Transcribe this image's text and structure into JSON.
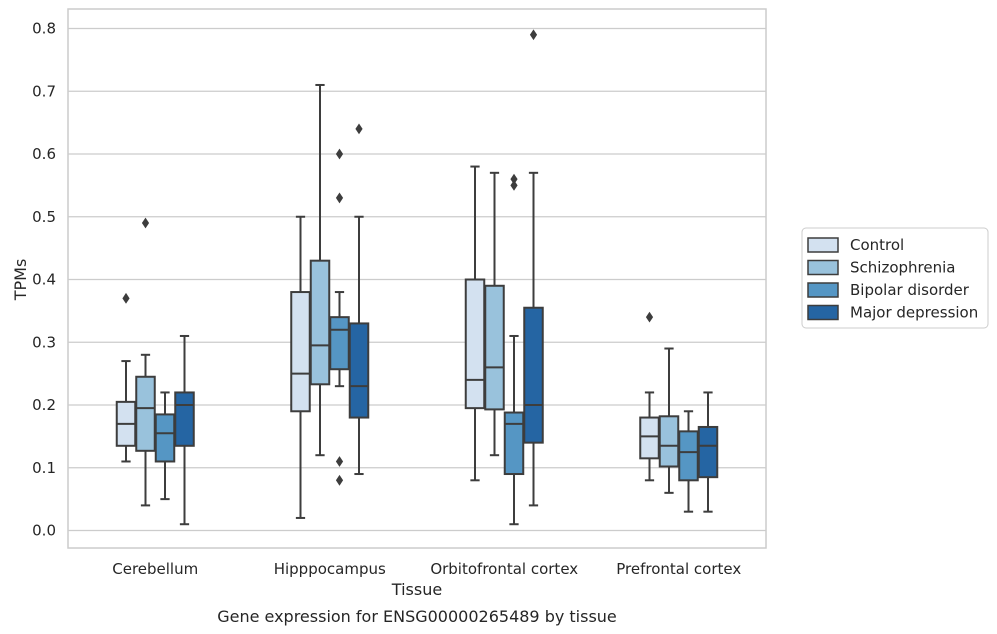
{
  "chart_data": {
    "type": "box",
    "title": "",
    "caption": "Gene expression for ENSG00000265489 by tissue",
    "xlabel": "Tissue",
    "ylabel": "TPMs",
    "ylim": [
      -0.03,
      0.83
    ],
    "yticks": [
      0.0,
      0.1,
      0.2,
      0.3,
      0.4,
      0.5,
      0.6,
      0.7,
      0.8
    ],
    "ytick_labels": [
      "0.0",
      "0.1",
      "0.2",
      "0.3",
      "0.4",
      "0.5",
      "0.6",
      "0.7",
      "0.8"
    ],
    "grid": "horizontal",
    "legend_position": "right",
    "categories": [
      "Cerebellum",
      "Hipppocampus",
      "Orbitofrontal cortex",
      "Prefrontal cortex"
    ],
    "series": [
      {
        "name": "Control",
        "color": "#d3e1f0",
        "boxes": [
          {
            "whislo": 0.11,
            "q1": 0.135,
            "med": 0.17,
            "q3": 0.205,
            "whishi": 0.27,
            "fliers": [
              0.37
            ]
          },
          {
            "whislo": 0.02,
            "q1": 0.19,
            "med": 0.25,
            "q3": 0.38,
            "whishi": 0.5,
            "fliers": []
          },
          {
            "whislo": 0.08,
            "q1": 0.195,
            "med": 0.24,
            "q3": 0.4,
            "whishi": 0.58,
            "fliers": []
          },
          {
            "whislo": 0.08,
            "q1": 0.115,
            "med": 0.15,
            "q3": 0.18,
            "whishi": 0.22,
            "fliers": [
              0.34
            ]
          }
        ]
      },
      {
        "name": "Schizophrenia",
        "color": "#99c2dc",
        "boxes": [
          {
            "whislo": 0.04,
            "q1": 0.127,
            "med": 0.195,
            "q3": 0.245,
            "whishi": 0.28,
            "fliers": [
              0.49
            ]
          },
          {
            "whislo": 0.12,
            "q1": 0.233,
            "med": 0.295,
            "q3": 0.43,
            "whishi": 0.71,
            "fliers": []
          },
          {
            "whislo": 0.12,
            "q1": 0.193,
            "med": 0.26,
            "q3": 0.39,
            "whishi": 0.57,
            "fliers": []
          },
          {
            "whislo": 0.06,
            "q1": 0.102,
            "med": 0.135,
            "q3": 0.182,
            "whishi": 0.29,
            "fliers": []
          }
        ]
      },
      {
        "name": "Bipolar disorder",
        "color": "#5596c4",
        "boxes": [
          {
            "whislo": 0.05,
            "q1": 0.11,
            "med": 0.155,
            "q3": 0.185,
            "whishi": 0.22,
            "fliers": []
          },
          {
            "whislo": 0.23,
            "q1": 0.257,
            "med": 0.32,
            "q3": 0.34,
            "whishi": 0.38,
            "fliers": [
              0.6,
              0.53,
              0.11,
              0.08
            ]
          },
          {
            "whislo": 0.01,
            "q1": 0.09,
            "med": 0.17,
            "q3": 0.188,
            "whishi": 0.31,
            "fliers": [
              0.56,
              0.55
            ]
          },
          {
            "whislo": 0.03,
            "q1": 0.08,
            "med": 0.125,
            "q3": 0.158,
            "whishi": 0.19,
            "fliers": []
          }
        ]
      },
      {
        "name": "Major depression",
        "color": "#2565a3",
        "boxes": [
          {
            "whislo": 0.01,
            "q1": 0.135,
            "med": 0.2,
            "q3": 0.22,
            "whishi": 0.31,
            "fliers": []
          },
          {
            "whislo": 0.09,
            "q1": 0.18,
            "med": 0.23,
            "q3": 0.33,
            "whishi": 0.5,
            "fliers": [
              0.64
            ]
          },
          {
            "whislo": 0.04,
            "q1": 0.14,
            "med": 0.2,
            "q3": 0.355,
            "whishi": 0.57,
            "fliers": [
              0.79
            ]
          },
          {
            "whislo": 0.03,
            "q1": 0.085,
            "med": 0.135,
            "q3": 0.165,
            "whishi": 0.22,
            "fliers": []
          }
        ]
      }
    ]
  }
}
